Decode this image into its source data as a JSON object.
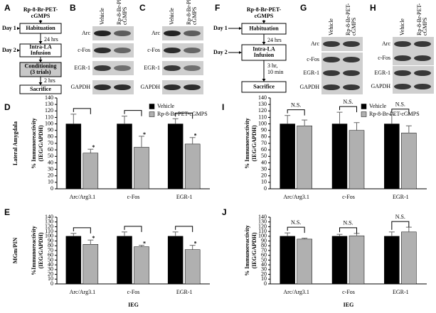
{
  "panel_labels": [
    "A",
    "B",
    "C",
    "D",
    "E",
    "F",
    "G",
    "H",
    "I",
    "J"
  ],
  "protocols": [
    {
      "title": [
        "Rp-8-Br-PET-",
        "cGMPS"
      ],
      "days": [
        "Day 1",
        "Day 2"
      ],
      "steps": [
        {
          "lines": [
            "Habituation"
          ]
        },
        {
          "lines": [
            "Intra-LA",
            "Infusion"
          ]
        },
        {
          "lines": [
            "Conditioning",
            "(3 trials)"
          ],
          "shaded": true
        },
        {
          "lines": [
            "Sacrifice"
          ]
        }
      ],
      "intervals": [
        [
          "24 hrs"
        ],
        null,
        [
          "2 hrs"
        ]
      ]
    },
    {
      "title": [
        "Rp-8-Br-PET-",
        "cGMPS"
      ],
      "days": [
        "Day 1",
        "Day 2"
      ],
      "steps": [
        {
          "lines": [
            "Habituation"
          ]
        },
        {
          "lines": [
            "Intra-LA",
            "Infusion"
          ]
        },
        {
          "lines": [
            "Sacrifice"
          ]
        }
      ],
      "intervals": [
        [
          "24 hrs"
        ],
        [
          "3 hr,",
          "10 min"
        ]
      ]
    }
  ],
  "blots": [
    {
      "columns": [
        [
          "Vehicle"
        ],
        [
          "Rp-8-Br-PET-",
          "cGMPS"
        ]
      ],
      "rows": [
        "Arc",
        "c-Fos",
        "EGR-1",
        "GAPDH"
      ]
    },
    {
      "columns": [
        [
          "Vehicle"
        ],
        [
          "Rp-8-Br-PET-",
          "cGMPS"
        ]
      ],
      "rows": [
        "Arc",
        "c-Fos",
        "EGR-1",
        "GAPDH"
      ]
    },
    {
      "columns": [
        [
          "Vehicle"
        ],
        [
          "Rp-8-Br-PET-",
          "cGMPS"
        ]
      ],
      "rows": [
        "Arc",
        "c-Fos",
        "EGR-1",
        "GAPDH"
      ]
    },
    {
      "columns": [
        [
          "Vehicle"
        ],
        [
          "Rp-8-Br-PET-",
          "cGMPS"
        ]
      ],
      "rows": [
        "Arc",
        "c-Fos",
        "EGR-1",
        "GAPDH"
      ]
    }
  ],
  "chart_data": [
    {
      "type": "bar",
      "region": "Lateral Amygdala",
      "ylabel": [
        "% Immunoreactivity",
        "(IEG/GAPDH)"
      ],
      "categories": [
        "Arc/Arg3.1",
        "c-Fos",
        "EGR-1"
      ],
      "series": [
        {
          "name": "Vehicle",
          "color": "#000000",
          "values": [
            100,
            100,
            100
          ],
          "errors": [
            15,
            12,
            8
          ]
        },
        {
          "name": "Rp-8-Br-PET-cGMPS",
          "color": "#b0b0b0",
          "values": [
            55,
            64,
            69
          ],
          "errors": [
            6,
            17,
            10
          ]
        }
      ],
      "ylim": [
        0,
        140
      ],
      "yticks": [
        0,
        10,
        20,
        30,
        40,
        50,
        60,
        70,
        80,
        90,
        100,
        110,
        120,
        130,
        140
      ],
      "significance": [
        "*",
        "*",
        "*"
      ]
    },
    {
      "type": "bar",
      "region": "MGm/PIN",
      "ylabel": [
        "%Immunoreactivity",
        "(IEG/GAPDH)"
      ],
      "xlabel": "IEG",
      "categories": [
        "Arc/Arg3.1",
        "c-Fos",
        "EGR-1"
      ],
      "series": [
        {
          "color": "#000000",
          "values": [
            100,
            100,
            100
          ],
          "errors": [
            6,
            9,
            9
          ]
        },
        {
          "color": "#b0b0b0",
          "values": [
            83,
            78,
            72
          ],
          "errors": [
            9,
            3,
            9
          ]
        }
      ],
      "ylim": [
        0,
        140
      ],
      "yticks": [
        0,
        10,
        20,
        30,
        40,
        50,
        60,
        70,
        80,
        90,
        100,
        110,
        120,
        130,
        140
      ],
      "significance": [
        "*",
        "*",
        "*"
      ]
    },
    {
      "type": "bar",
      "ylabel": [
        "% Immunoreactivity",
        "(IEG/GAPDH)"
      ],
      "categories": [
        "Arc/Arg3.1",
        "c-Fos",
        "EGR-1"
      ],
      "series": [
        {
          "name": "Vehicle",
          "color": "#000000",
          "values": [
            100,
            100,
            100
          ],
          "errors": [
            13,
            18,
            14
          ]
        },
        {
          "name": "Rp-8-Br-PET-cGMPS",
          "color": "#b0b0b0",
          "values": [
            97,
            90,
            86
          ],
          "errors": [
            9,
            12,
            11
          ]
        }
      ],
      "ylim": [
        0,
        140
      ],
      "yticks": [
        0,
        10,
        20,
        30,
        40,
        50,
        60,
        70,
        80,
        90,
        100,
        110,
        120,
        130,
        140
      ],
      "significance": [
        "N.S.",
        "N.S.",
        "N.S."
      ]
    },
    {
      "type": "bar",
      "ylabel": [
        "% Immunoreactivity",
        "(IEG/GAPDH)"
      ],
      "xlabel": "IEG",
      "categories": [
        "Arc/Arg3.1",
        "c-Fos",
        "EGR-1"
      ],
      "series": [
        {
          "color": "#000000",
          "values": [
            100,
            100,
            100
          ],
          "errors": [
            7,
            4,
            9
          ]
        },
        {
          "color": "#b0b0b0",
          "values": [
            94,
            101,
            109
          ],
          "errors": [
            2,
            5,
            10
          ]
        }
      ],
      "ylim": [
        0,
        140
      ],
      "yticks": [
        0,
        10,
        20,
        30,
        40,
        50,
        60,
        70,
        80,
        90,
        100,
        110,
        120,
        130,
        140
      ],
      "significance": [
        "N.S.",
        "N.S.",
        "N.S."
      ]
    }
  ]
}
